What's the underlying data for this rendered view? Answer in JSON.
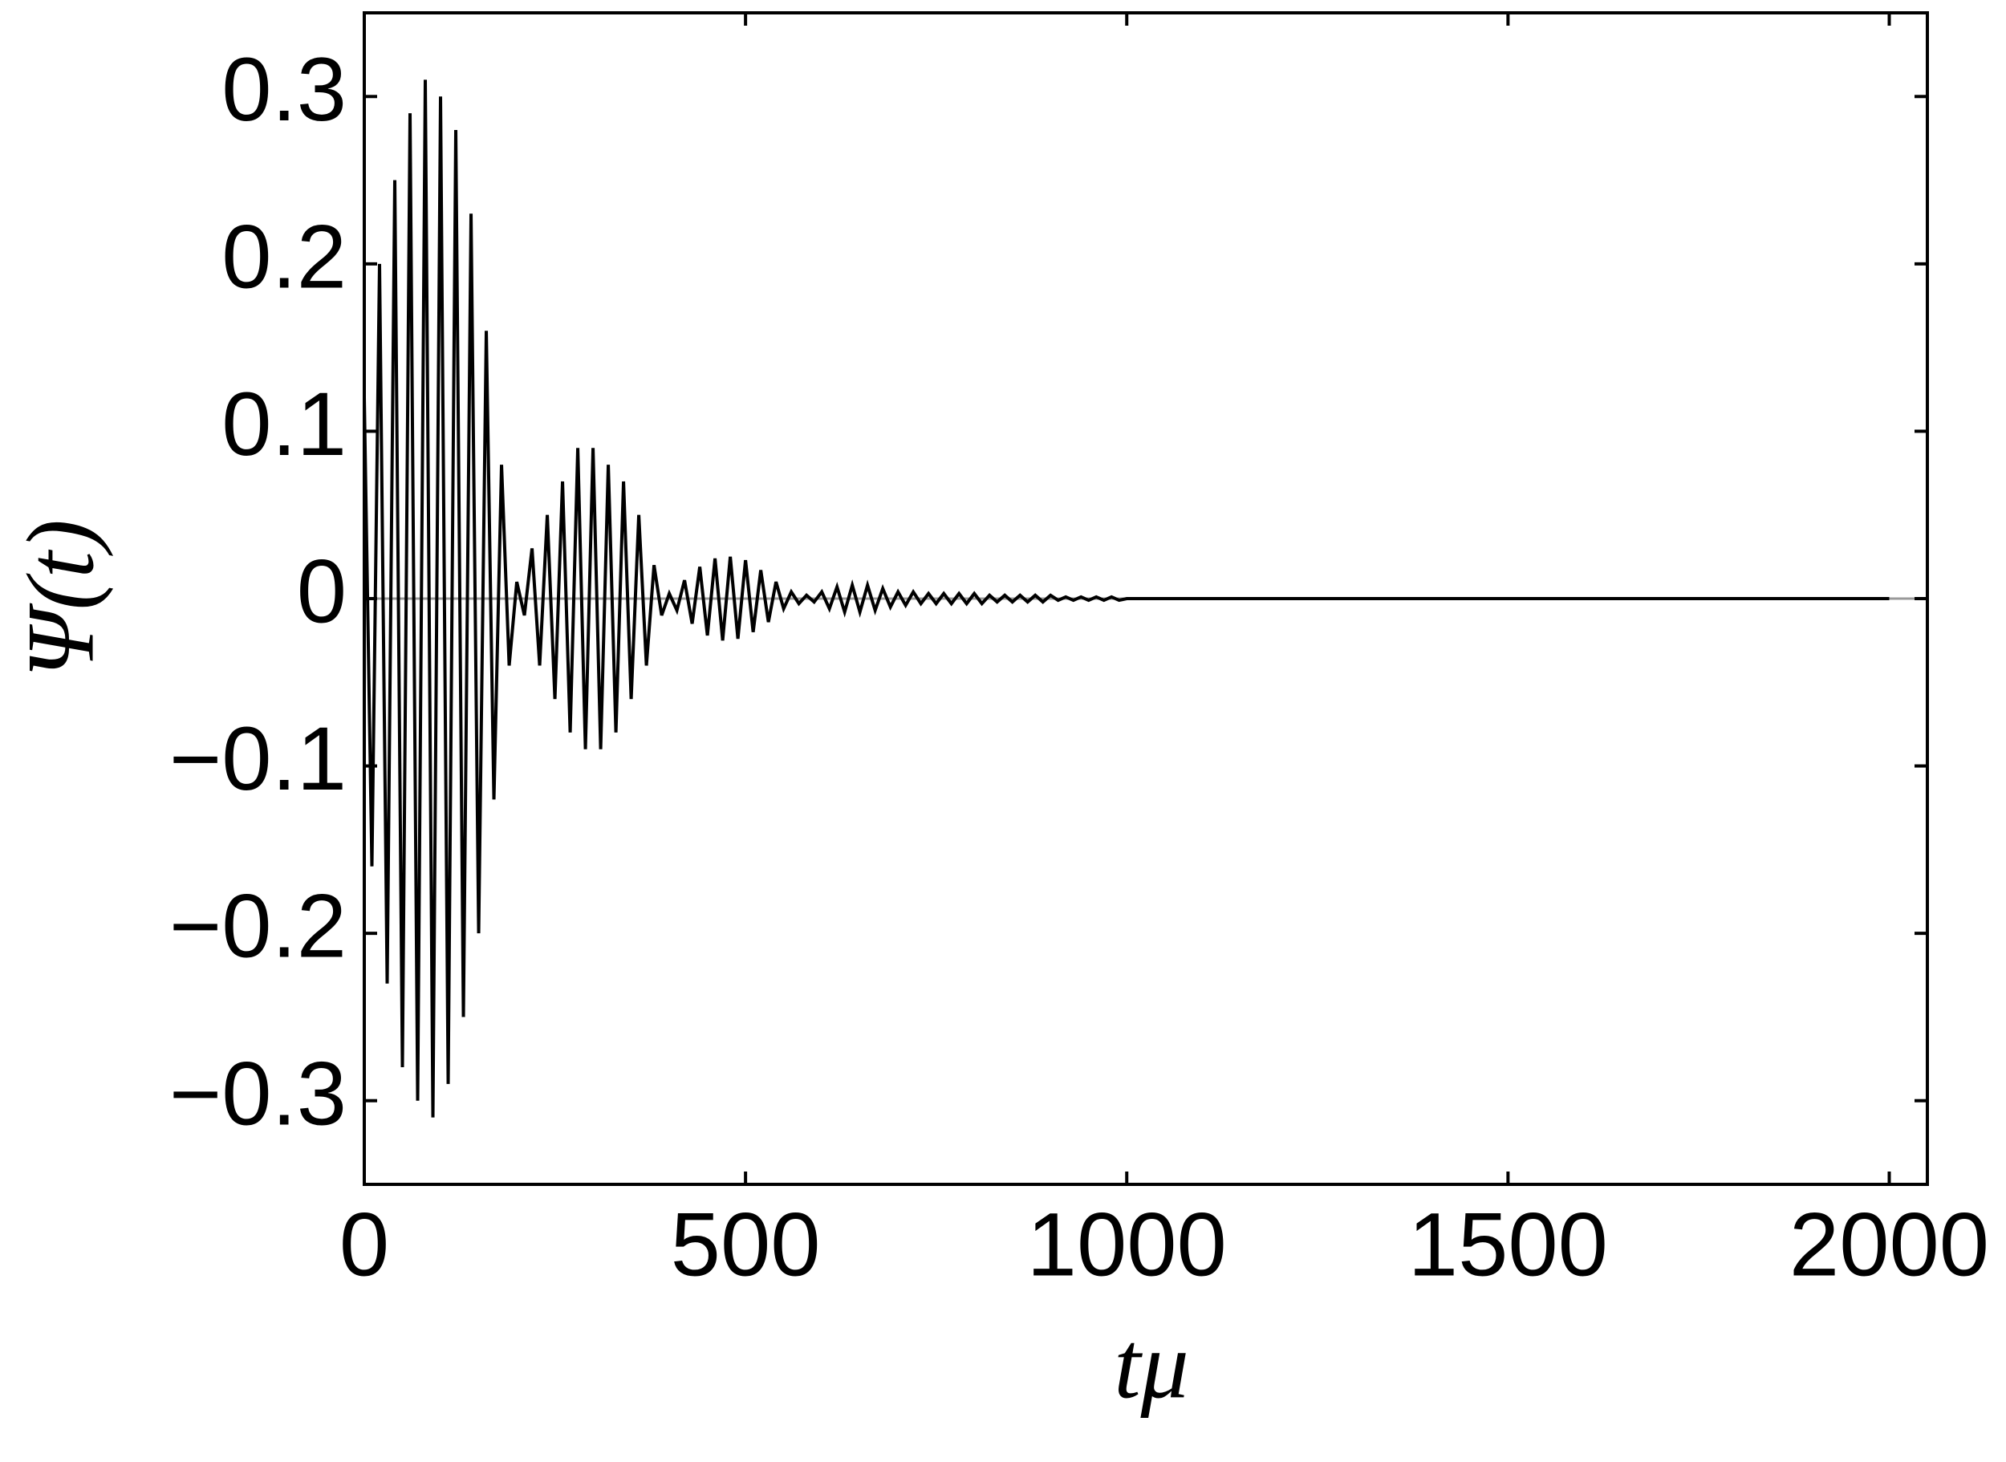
{
  "chart_data": {
    "type": "line",
    "xlabel": "tμ",
    "ylabel": "Ψ(t)",
    "xlim": [
      0,
      2050
    ],
    "ylim": [
      -0.35,
      0.35
    ],
    "xticks": [
      0,
      500,
      1000,
      1500,
      2000
    ],
    "yticks": [
      {
        "value": -0.3,
        "label": "−0.3"
      },
      {
        "value": -0.2,
        "label": "−0.2"
      },
      {
        "value": -0.1,
        "label": "−0.1"
      },
      0,
      0.1,
      0.2,
      0.3
    ],
    "x": [
      0,
      10,
      20,
      30,
      40,
      50,
      60,
      70,
      80,
      90,
      100,
      110,
      120,
      130,
      140,
      150,
      160,
      170,
      180,
      190,
      200,
      210,
      220,
      230,
      240,
      250,
      260,
      270,
      280,
      290,
      300,
      310,
      320,
      330,
      340,
      350,
      360,
      370,
      380,
      390,
      400,
      410,
      420,
      430,
      440,
      450,
      460,
      470,
      480,
      490,
      500,
      510,
      520,
      530,
      540,
      550,
      560,
      570,
      580,
      590,
      600,
      610,
      620,
      630,
      640,
      650,
      660,
      670,
      680,
      690,
      700,
      710,
      720,
      730,
      740,
      750,
      760,
      770,
      780,
      790,
      800,
      810,
      820,
      830,
      840,
      850,
      860,
      870,
      880,
      890,
      900,
      910,
      920,
      930,
      940,
      950,
      960,
      970,
      980,
      990,
      1000,
      2000
    ],
    "series": [
      {
        "name": "Ψ(t)",
        "color": "#000000",
        "values": [
          0.12,
          -0.16,
          0.2,
          -0.23,
          0.25,
          -0.28,
          0.29,
          -0.3,
          0.31,
          -0.31,
          0.3,
          -0.29,
          0.28,
          -0.25,
          0.23,
          -0.2,
          0.16,
          -0.12,
          0.08,
          -0.04,
          0.01,
          -0.01,
          0.03,
          -0.04,
          0.05,
          -0.06,
          0.07,
          -0.08,
          0.09,
          -0.09,
          0.09,
          -0.09,
          0.08,
          -0.08,
          0.07,
          -0.06,
          0.05,
          -0.04,
          0.02,
          -0.01,
          0.003,
          -0.007,
          0.011,
          -0.015,
          0.019,
          -0.022,
          0.024,
          -0.025,
          0.025,
          -0.024,
          0.023,
          -0.02,
          0.017,
          -0.014,
          0.01,
          -0.006,
          0.004,
          -0.003,
          0.002,
          -0.002,
          0.004,
          -0.006,
          0.007,
          -0.008,
          0.008,
          -0.008,
          0.008,
          -0.007,
          0.006,
          -0.005,
          0.004,
          -0.004,
          0.004,
          -0.003,
          0.003,
          -0.003,
          0.003,
          -0.003,
          0.003,
          -0.003,
          0.003,
          -0.003,
          0.002,
          -0.002,
          0.002,
          -0.002,
          0.002,
          -0.002,
          0.002,
          -0.002,
          0.002,
          -0.001,
          0.001,
          -0.001,
          0.001,
          -0.001,
          0.001,
          -0.001,
          0.001,
          -0.001,
          0,
          0
        ]
      }
    ]
  }
}
